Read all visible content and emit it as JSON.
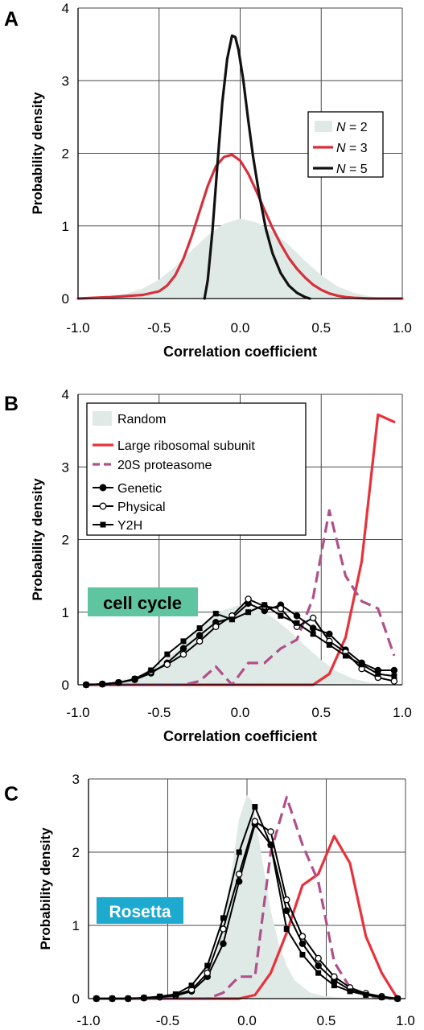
{
  "colors": {
    "random_fill": "#dfeae6",
    "n3": "#d6303d",
    "n5": "#111111",
    "large_ribosomal": "#e8313b",
    "proteasome": "#b0508a",
    "black": "#000000",
    "grid": "#4a4a4a",
    "badge_cell_cycle": "#5fc5a0",
    "badge_rosetta": "#1ea9cf"
  },
  "chart_data": [
    {
      "panel": "A",
      "type": "line",
      "xlabel": "Correlation coefficient",
      "ylabel": "Probability density",
      "xlim": [
        -1.0,
        1.0
      ],
      "ylim": [
        0,
        4
      ],
      "x_ticks": [
        "-1.0",
        "-0.5",
        "0.0",
        "0.5",
        "1.0"
      ],
      "y_ticks": [
        "0",
        "1",
        "2",
        "3",
        "4"
      ],
      "grid": true,
      "legend_position": "right",
      "legend": [
        {
          "prefix": "N",
          "suffix": " = 2",
          "style": "area"
        },
        {
          "prefix": "N",
          "suffix": " = 3",
          "style": "line"
        },
        {
          "prefix": "N",
          "suffix": " = 5",
          "style": "line"
        }
      ],
      "series": [
        {
          "name": "N = 2",
          "style": "area",
          "color_key": "random_fill",
          "x": [
            -1.0,
            -0.9,
            -0.8,
            -0.7,
            -0.6,
            -0.5,
            -0.4,
            -0.3,
            -0.2,
            -0.1,
            0.0,
            0.1,
            0.2,
            0.3,
            0.4,
            0.5,
            0.6,
            0.7,
            0.8,
            0.9,
            1.0
          ],
          "y": [
            0.0,
            0.01,
            0.03,
            0.07,
            0.14,
            0.26,
            0.44,
            0.66,
            0.87,
            1.03,
            1.1,
            1.05,
            0.92,
            0.74,
            0.52,
            0.32,
            0.17,
            0.08,
            0.03,
            0.01,
            0.0
          ]
        },
        {
          "name": "N = 3",
          "style": "line",
          "color_key": "n3",
          "x": [
            -1.0,
            -0.8,
            -0.6,
            -0.5,
            -0.45,
            -0.4,
            -0.35,
            -0.3,
            -0.25,
            -0.2,
            -0.15,
            -0.1,
            -0.05,
            0.0,
            0.05,
            0.1,
            0.15,
            0.2,
            0.25,
            0.3,
            0.35,
            0.4,
            0.45,
            0.5,
            0.55,
            0.6,
            0.65,
            0.7,
            0.8,
            0.9,
            1.0
          ],
          "y": [
            0.0,
            0.02,
            0.05,
            0.1,
            0.18,
            0.32,
            0.55,
            0.85,
            1.2,
            1.55,
            1.82,
            1.95,
            1.98,
            1.9,
            1.72,
            1.48,
            1.22,
            0.97,
            0.75,
            0.56,
            0.41,
            0.29,
            0.19,
            0.12,
            0.07,
            0.04,
            0.02,
            0.01,
            0.0,
            0.0,
            0.0
          ]
        },
        {
          "name": "N = 5",
          "style": "line",
          "color_key": "n5",
          "x": [
            -0.22,
            -0.2,
            -0.17,
            -0.14,
            -0.11,
            -0.08,
            -0.05,
            -0.03,
            -0.01,
            0.02,
            0.05,
            0.08,
            0.12,
            0.16,
            0.2,
            0.25,
            0.3,
            0.35,
            0.4,
            0.43
          ],
          "y": [
            0.0,
            0.25,
            0.95,
            1.85,
            2.7,
            3.3,
            3.62,
            3.6,
            3.42,
            3.0,
            2.45,
            1.95,
            1.4,
            0.95,
            0.62,
            0.35,
            0.18,
            0.08,
            0.02,
            0.0
          ]
        }
      ]
    },
    {
      "panel": "B",
      "type": "line",
      "xlabel": "Correlation coefficient",
      "ylabel": "Probability density",
      "xlim": [
        -1.0,
        1.0
      ],
      "ylim": [
        0,
        4
      ],
      "x_ticks": [
        "-1.0",
        "-0.5",
        "0.0",
        "0.5",
        "1.0"
      ],
      "y_ticks": [
        "0",
        "1",
        "2",
        "3",
        "4"
      ],
      "grid": true,
      "legend_position": "top-left",
      "legend": [
        {
          "label": "Random",
          "style": "area"
        },
        {
          "label": "Large ribosomal subunit",
          "style": "line"
        },
        {
          "label": "20S proteasome",
          "style": "dashed"
        },
        {
          "label": "Genetic",
          "style": "filled-circle"
        },
        {
          "label": "Physical",
          "style": "open-circle"
        },
        {
          "label": "Y2H",
          "style": "filled-square"
        }
      ],
      "annotation": "cell cycle",
      "series": [
        {
          "name": "Random",
          "style": "area",
          "color_key": "random_fill",
          "x": [
            -1.0,
            -0.9,
            -0.8,
            -0.7,
            -0.6,
            -0.5,
            -0.4,
            -0.3,
            -0.2,
            -0.1,
            0.0,
            0.1,
            0.2,
            0.3,
            0.4,
            0.5,
            0.6,
            0.7,
            0.8,
            0.9,
            1.0
          ],
          "y": [
            0.0,
            0.01,
            0.04,
            0.08,
            0.15,
            0.28,
            0.46,
            0.68,
            0.88,
            1.03,
            1.1,
            1.05,
            0.93,
            0.75,
            0.54,
            0.34,
            0.18,
            0.08,
            0.03,
            0.01,
            0.0
          ]
        },
        {
          "name": "Large ribosomal subunit",
          "style": "line",
          "color_key": "large_ribosomal",
          "x": [
            -0.95,
            -0.85,
            -0.75,
            -0.65,
            -0.55,
            -0.45,
            -0.35,
            -0.25,
            -0.15,
            -0.05,
            0.05,
            0.15,
            0.25,
            0.35,
            0.45,
            0.55,
            0.65,
            0.75,
            0.85,
            0.95
          ],
          "y": [
            0,
            0,
            0,
            0,
            0,
            0,
            0,
            0,
            0,
            0,
            0,
            0,
            0,
            0,
            0,
            0.15,
            0.65,
            1.7,
            3.72,
            3.62
          ]
        },
        {
          "name": "20S proteasome",
          "style": "dashed",
          "color_key": "proteasome",
          "x": [
            -0.95,
            -0.85,
            -0.75,
            -0.65,
            -0.55,
            -0.45,
            -0.35,
            -0.25,
            -0.15,
            -0.05,
            0.05,
            0.15,
            0.25,
            0.35,
            0.45,
            0.55,
            0.65,
            0.75,
            0.85,
            0.95
          ],
          "y": [
            0,
            0,
            0,
            0,
            0,
            0,
            0,
            0.05,
            0.25,
            0.0,
            0.3,
            0.3,
            0.5,
            0.62,
            1.2,
            2.4,
            1.5,
            1.15,
            1.05,
            0.4
          ]
        },
        {
          "name": "Genetic",
          "style": "filled-circle",
          "color_key": "black",
          "x": [
            -0.95,
            -0.85,
            -0.75,
            -0.65,
            -0.55,
            -0.45,
            -0.35,
            -0.25,
            -0.15,
            -0.05,
            0.05,
            0.15,
            0.25,
            0.35,
            0.45,
            0.55,
            0.65,
            0.75,
            0.85,
            0.95
          ],
          "y": [
            0.0,
            0.01,
            0.03,
            0.07,
            0.16,
            0.3,
            0.5,
            0.68,
            0.86,
            0.92,
            1.12,
            1.02,
            1.1,
            0.95,
            0.78,
            0.7,
            0.48,
            0.3,
            0.2,
            0.2
          ]
        },
        {
          "name": "Physical",
          "style": "open-circle",
          "color_key": "black",
          "x": [
            -0.95,
            -0.85,
            -0.75,
            -0.65,
            -0.55,
            -0.45,
            -0.35,
            -0.25,
            -0.15,
            -0.05,
            0.05,
            0.15,
            0.25,
            0.35,
            0.45,
            0.55,
            0.65,
            0.75,
            0.85,
            0.95
          ],
          "y": [
            0.0,
            0.01,
            0.03,
            0.08,
            0.18,
            0.28,
            0.42,
            0.6,
            0.8,
            0.95,
            1.18,
            1.08,
            1.05,
            0.8,
            0.92,
            0.6,
            0.45,
            0.22,
            0.1,
            0.05
          ]
        },
        {
          "name": "Y2H",
          "style": "filled-square",
          "color_key": "black",
          "x": [
            -0.95,
            -0.85,
            -0.75,
            -0.65,
            -0.55,
            -0.45,
            -0.35,
            -0.25,
            -0.15,
            -0.05,
            0.05,
            0.15,
            0.25,
            0.35,
            0.45,
            0.55,
            0.65,
            0.75,
            0.85,
            0.95
          ],
          "y": [
            0.0,
            0.01,
            0.03,
            0.08,
            0.2,
            0.42,
            0.6,
            0.78,
            0.98,
            0.9,
            1.0,
            1.1,
            0.95,
            0.85,
            0.7,
            0.55,
            0.4,
            0.28,
            0.15,
            0.12
          ]
        }
      ]
    },
    {
      "panel": "C",
      "type": "line",
      "xlabel": "",
      "ylabel": "Probability density",
      "xlim": [
        -1.0,
        1.0
      ],
      "ylim": [
        0,
        3
      ],
      "x_ticks": [
        "-1.0",
        "-0.5",
        "0.0",
        "0.5",
        "1.0"
      ],
      "y_ticks": [
        "0",
        "1",
        "2",
        "3"
      ],
      "grid": true,
      "annotation": "Rosetta",
      "series": [
        {
          "name": "Random",
          "style": "area",
          "color_key": "random_fill",
          "x": [
            -1.0,
            -0.5,
            -0.4,
            -0.3,
            -0.2,
            -0.15,
            -0.1,
            -0.05,
            0.0,
            0.03,
            0.05,
            0.1,
            0.15,
            0.2,
            0.25,
            0.3,
            0.4,
            0.5,
            0.6,
            1.0
          ],
          "y": [
            0.0,
            0.02,
            0.06,
            0.18,
            0.55,
            1.0,
            1.7,
            2.45,
            2.78,
            2.7,
            2.5,
            1.85,
            1.2,
            0.75,
            0.45,
            0.25,
            0.08,
            0.03,
            0.01,
            0.0
          ]
        },
        {
          "name": "Large ribosomal subunit",
          "style": "line",
          "color_key": "large_ribosomal",
          "x": [
            -0.95,
            -0.85,
            -0.75,
            -0.65,
            -0.55,
            -0.45,
            -0.35,
            -0.25,
            -0.15,
            -0.05,
            0.05,
            0.15,
            0.25,
            0.35,
            0.45,
            0.55,
            0.65,
            0.75,
            0.85,
            0.95
          ],
          "y": [
            0,
            0,
            0,
            0,
            0,
            0,
            0,
            0,
            0,
            0,
            0.05,
            0.35,
            0.9,
            1.55,
            1.7,
            2.22,
            1.85,
            0.85,
            0.35,
            0.0
          ]
        },
        {
          "name": "20S proteasome",
          "style": "dashed",
          "color_key": "proteasome",
          "x": [
            -0.95,
            -0.85,
            -0.75,
            -0.65,
            -0.55,
            -0.45,
            -0.35,
            -0.25,
            -0.15,
            -0.05,
            0.05,
            0.15,
            0.25,
            0.35,
            0.45,
            0.55,
            0.65,
            0.75,
            0.85,
            0.95
          ],
          "y": [
            0,
            0,
            0,
            0,
            0,
            0,
            0,
            0,
            0.08,
            0.3,
            0.3,
            2.0,
            2.75,
            2.1,
            1.6,
            0.5,
            0.15,
            0.05,
            0.0,
            0.0
          ]
        },
        {
          "name": "Genetic",
          "style": "filled-circle",
          "color_key": "black",
          "x": [
            -0.95,
            -0.85,
            -0.75,
            -0.65,
            -0.55,
            -0.45,
            -0.35,
            -0.25,
            -0.15,
            -0.05,
            0.05,
            0.15,
            0.25,
            0.35,
            0.45,
            0.55,
            0.65,
            0.75,
            0.85,
            0.95
          ],
          "y": [
            0.0,
            0.0,
            0.0,
            0.01,
            0.02,
            0.04,
            0.1,
            0.3,
            0.75,
            1.6,
            2.38,
            2.1,
            1.2,
            0.75,
            0.45,
            0.25,
            0.12,
            0.06,
            0.02,
            0.0
          ]
        },
        {
          "name": "Physical",
          "style": "open-circle",
          "color_key": "black",
          "x": [
            -0.95,
            -0.85,
            -0.75,
            -0.65,
            -0.55,
            -0.45,
            -0.35,
            -0.25,
            -0.15,
            -0.05,
            0.05,
            0.15,
            0.25,
            0.35,
            0.45,
            0.55,
            0.65,
            0.75,
            0.85,
            0.95
          ],
          "y": [
            0.0,
            0.0,
            0.0,
            0.01,
            0.02,
            0.05,
            0.12,
            0.35,
            0.95,
            1.7,
            2.42,
            2.28,
            1.35,
            0.85,
            0.55,
            0.3,
            0.15,
            0.07,
            0.03,
            0.0
          ]
        },
        {
          "name": "Y2H",
          "style": "filled-square",
          "color_key": "black",
          "x": [
            -0.95,
            -0.85,
            -0.75,
            -0.65,
            -0.55,
            -0.45,
            -0.35,
            -0.25,
            -0.15,
            -0.05,
            0.05,
            0.15,
            0.25,
            0.35,
            0.45,
            0.55,
            0.65,
            0.75,
            0.85,
            0.95
          ],
          "y": [
            0.0,
            0.0,
            0.0,
            0.01,
            0.03,
            0.06,
            0.18,
            0.45,
            1.1,
            2.0,
            2.62,
            2.1,
            0.95,
            0.6,
            0.35,
            0.18,
            0.1,
            0.05,
            0.02,
            0.0
          ]
        }
      ]
    }
  ]
}
